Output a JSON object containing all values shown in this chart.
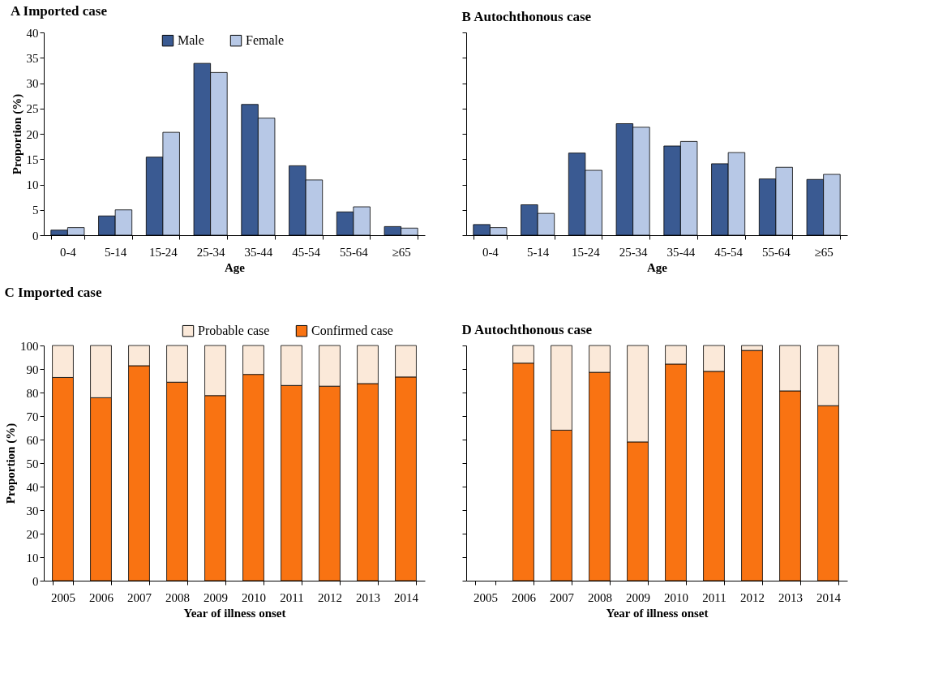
{
  "chart_data": [
    {
      "type": "bar",
      "title": "A  Imported case",
      "xlabel": "Age",
      "ylabel": "Proportion (%)",
      "categories": [
        "0-4",
        "5-14",
        "15-24",
        "25-34",
        "35-44",
        "45-54",
        "55-64",
        "≥65"
      ],
      "series": [
        {
          "name": "Male",
          "color": "#3a5a92",
          "values": [
            1.0,
            3.8,
            15.4,
            33.9,
            25.8,
            13.7,
            4.6,
            1.7
          ]
        },
        {
          "name": "Female",
          "color": "#b7c8e6",
          "values": [
            1.5,
            5.0,
            20.3,
            32.1,
            23.1,
            10.9,
            5.6,
            1.4
          ]
        }
      ],
      "ylim": [
        0,
        40
      ],
      "yticks": [
        0,
        5,
        10,
        15,
        20,
        25,
        30,
        35,
        40
      ],
      "legend": "top"
    },
    {
      "type": "bar",
      "title": "B  Autochthonous case",
      "xlabel": "Age",
      "categories": [
        "0-4",
        "5-14",
        "15-24",
        "25-34",
        "35-44",
        "45-54",
        "55-64",
        "≥65"
      ],
      "series": [
        {
          "color": "#3a5a92",
          "values": [
            2.1,
            6.0,
            16.2,
            22.0,
            17.6,
            14.1,
            11.1,
            11.0
          ]
        },
        {
          "color": "#b7c8e6",
          "values": [
            1.5,
            4.3,
            12.8,
            21.3,
            18.5,
            16.3,
            13.4,
            12.0
          ]
        }
      ],
      "ylim": [
        0,
        40
      ],
      "yticks": [
        {
          "value": 0,
          "label": null
        },
        {
          "value": 5,
          "label": null
        },
        {
          "value": 10,
          "label": null
        },
        {
          "value": 15,
          "label": null
        },
        {
          "value": 20,
          "label": null
        },
        {
          "value": 25,
          "label": null
        },
        {
          "value": 30,
          "label": null
        },
        {
          "value": 35,
          "label": null
        },
        {
          "value": 40,
          "label": null
        }
      ],
      "tick_labels": "x"
    },
    {
      "type": "bar",
      "title": "C  Imported case",
      "xlabel": "Year of illness onset",
      "ylabel": "Proportion (%)",
      "stacked": true,
      "categories": [
        "2005",
        "2006",
        "2007",
        "2008",
        "2009",
        "2010",
        "2011",
        "2012",
        "2013",
        "2014"
      ],
      "series": [
        {
          "name": "Confirmed case",
          "color": "#f97312",
          "values": [
            86.4,
            77.8,
            91.4,
            84.4,
            78.7,
            87.7,
            83.0,
            82.7,
            83.8,
            86.6
          ]
        },
        {
          "name": "Probable case",
          "color": "#fbe9d9",
          "values": [
            13.6,
            22.2,
            8.6,
            15.6,
            21.3,
            12.3,
            17.0,
            17.3,
            16.2,
            13.4
          ]
        }
      ],
      "ylim": [
        0,
        100
      ],
      "yticks": [
        0,
        10,
        20,
        30,
        40,
        50,
        60,
        70,
        80,
        90,
        100
      ],
      "legend": "top right"
    },
    {
      "type": "bar",
      "title": "D  Autochthonous case",
      "xlabel": "Year of illness onset",
      "stacked": true,
      "categories": [
        "2005",
        "2006",
        "2007",
        "2008",
        "2009",
        "2010",
        "2011",
        "2012",
        "2013",
        "2014"
      ],
      "series": [
        {
          "color": "#f97312",
          "values": [
            null,
            92.5,
            64.0,
            88.6,
            59.0,
            92.1,
            89.0,
            97.9,
            80.7,
            74.4
          ]
        },
        {
          "color": "#fbe9d9",
          "values": [
            null,
            7.5,
            36.0,
            11.4,
            41.0,
            7.9,
            11.0,
            2.1,
            19.3,
            25.6
          ]
        }
      ],
      "ylim": [
        0,
        100
      ],
      "yticks": [
        {
          "value": 0,
          "label": null
        },
        {
          "value": 10,
          "label": null
        },
        {
          "value": 20,
          "label": null
        },
        {
          "value": 30,
          "label": null
        },
        {
          "value": 40,
          "label": null
        },
        {
          "value": 50,
          "label": null
        },
        {
          "value": 60,
          "label": null
        },
        {
          "value": 70,
          "label": null
        },
        {
          "value": 80,
          "label": null
        },
        {
          "value": 90,
          "label": null
        },
        {
          "value": 100,
          "label": null
        }
      ],
      "tick_labels": "x"
    }
  ]
}
